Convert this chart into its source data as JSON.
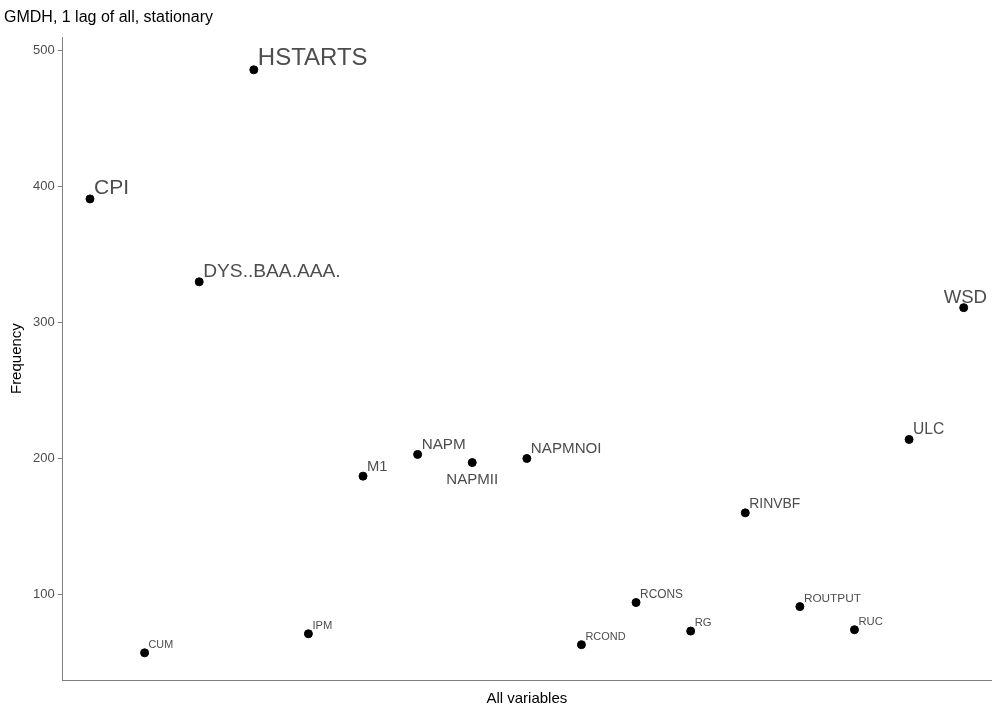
{
  "chart_data": {
    "type": "scatter",
    "title": "GMDH, 1 lag of all, stationary",
    "xlabel": "All variables",
    "ylabel": "Frequency",
    "categories": [
      null,
      null,
      null,
      null,
      null,
      null,
      null,
      null,
      null,
      null,
      null,
      null,
      null,
      null,
      null,
      null,
      null
    ],
    "values": [
      391,
      57,
      330,
      486,
      71,
      187,
      203,
      197,
      200,
      63,
      94,
      73,
      160,
      91,
      74,
      214,
      311
    ],
    "value_labels": [
      "CPI",
      "CUM",
      "DYS..BAA.AAA.",
      "HSTARTS",
      "IPM",
      "M1",
      "NAPM",
      "NAPMII",
      "NAPMNOI",
      "RCOND",
      "RCONS",
      "RG",
      "RINVBF",
      "ROUTPUT",
      "RUC",
      "ULC",
      "WSD"
    ],
    "color": "#000000",
    "marker": "circle",
    "ylim": [
      37,
      510
    ],
    "yticks": [
      100,
      200,
      300,
      400,
      500
    ],
    "grid": false,
    "tick_labels": "y"
  }
}
